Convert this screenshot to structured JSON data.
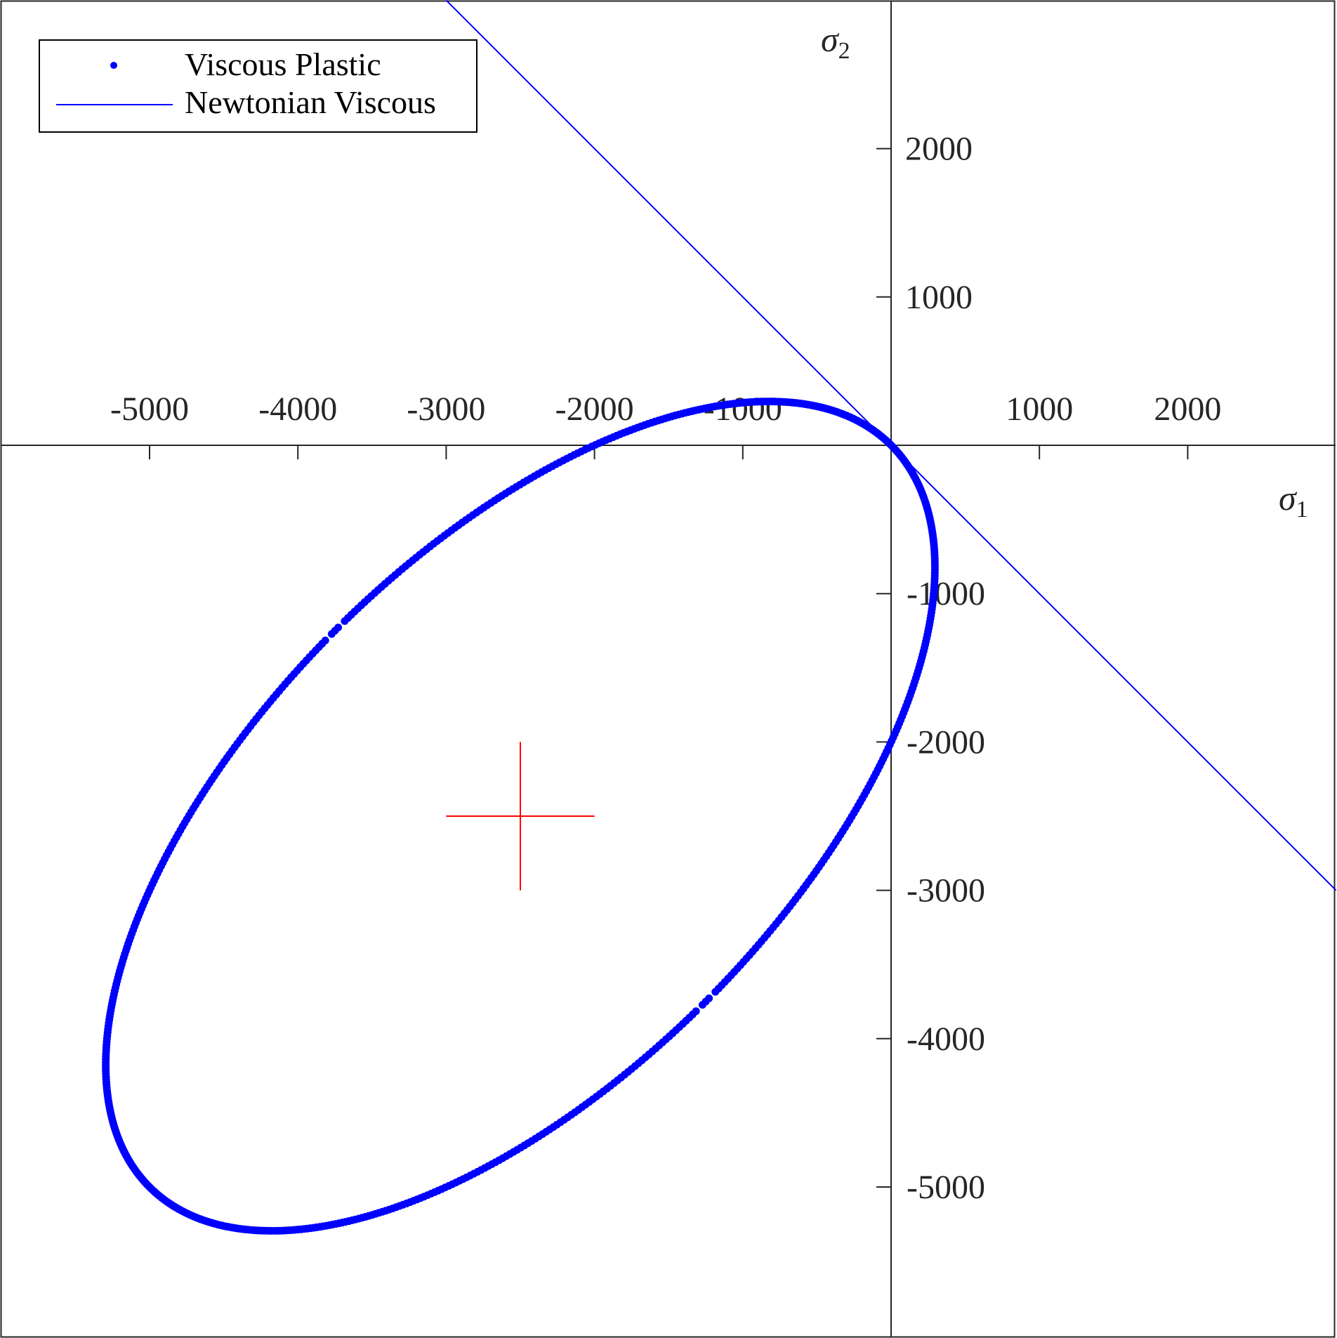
{
  "chart_data": {
    "type": "scatter",
    "x_axis": {
      "label": "σ",
      "label_subscript": "1",
      "range": [
        -6000,
        3000
      ],
      "ticks": [
        -5000,
        -4000,
        -3000,
        -2000,
        -1000,
        1000,
        2000
      ],
      "tick_labels": [
        "-5000",
        "-4000",
        "-3000",
        "-2000",
        "-1000",
        "1000",
        "2000"
      ]
    },
    "y_axis": {
      "label": "σ",
      "label_subscript": "2",
      "range": [
        -6000,
        3000
      ],
      "ticks": [
        -5000,
        -4000,
        -3000,
        -2000,
        -1000,
        1000,
        2000
      ],
      "tick_labels": [
        "-5000",
        "-4000",
        "-3000",
        "-2000",
        "-1000",
        "1000",
        "2000"
      ]
    },
    "axes_through_origin": true,
    "grid": false,
    "series": [
      {
        "name": "Viscous Plastic",
        "kind": "ellipse-points",
        "color": "#0000ff",
        "center": [
          -2500,
          -2500
        ],
        "semi_major": 3536,
        "semi_minor": 1768,
        "orientation_deg": 45,
        "gaps_at_param_deg": [
          90,
          270
        ]
      },
      {
        "name": "Newtonian Viscous",
        "kind": "line",
        "color": "#0000ff",
        "x": [
          -3000,
          3000
        ],
        "y": [
          3000,
          -3000
        ]
      }
    ],
    "annotations": [
      {
        "kind": "cross-marker",
        "color": "#ff0000",
        "center": [
          -2500,
          -2500
        ],
        "half_extent": 500
      }
    ],
    "legend": {
      "placement": "top-left",
      "entries": [
        "Viscous Plastic",
        "Newtonian Viscous"
      ]
    }
  }
}
